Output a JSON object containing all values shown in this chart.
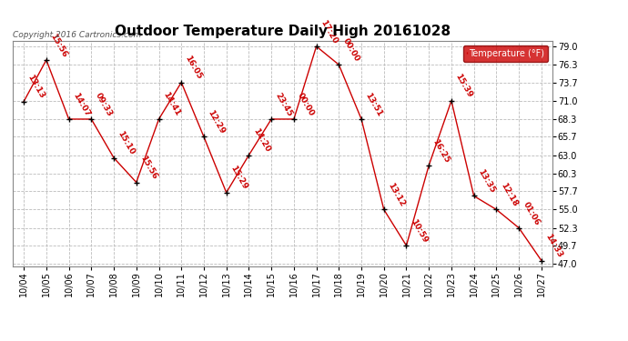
{
  "title": "Outdoor Temperature Daily High 20161028",
  "copyright": "Copyright 2016 Cartronics.com",
  "legend_label": "Temperature (°F)",
  "dates": [
    "10/04",
    "10/05",
    "10/06",
    "10/07",
    "10/08",
    "10/09",
    "10/10",
    "10/11",
    "10/12",
    "10/13",
    "10/14",
    "10/15",
    "10/16",
    "10/17",
    "10/18",
    "10/19",
    "10/20",
    "10/21",
    "10/22",
    "10/23",
    "10/24",
    "10/25",
    "10/26",
    "10/27"
  ],
  "temps": [
    70.9,
    77.0,
    68.3,
    68.3,
    62.6,
    59.0,
    68.3,
    73.7,
    65.7,
    57.5,
    63.0,
    68.3,
    68.3,
    79.0,
    76.3,
    68.3,
    55.0,
    49.7,
    61.5,
    71.0,
    57.0,
    55.0,
    52.3,
    47.5
  ],
  "times": [
    "13:13",
    "15:56",
    "14:07",
    "09:33",
    "15:10",
    "15:56",
    "14:41",
    "16:05",
    "12:29",
    "15:29",
    "14:20",
    "23:45",
    "00:00",
    "17:20",
    "00:00",
    "13:51",
    "13:12",
    "10:59",
    "16:25",
    "15:39",
    "13:35",
    "12:18",
    "01:06",
    "14:33"
  ],
  "ylim": [
    47.0,
    79.0
  ],
  "yticks": [
    47.0,
    49.7,
    52.3,
    55.0,
    57.7,
    60.3,
    63.0,
    65.7,
    68.3,
    71.0,
    73.7,
    76.3,
    79.0
  ],
  "line_color": "#cc0000",
  "marker_color": "#000000",
  "bg_color": "#ffffff",
  "grid_color": "#bbbbbb",
  "title_fontsize": 11,
  "label_fontsize": 7,
  "annotation_fontsize": 6.5,
  "legend_bg": "#cc0000",
  "legend_text_color": "#ffffff"
}
